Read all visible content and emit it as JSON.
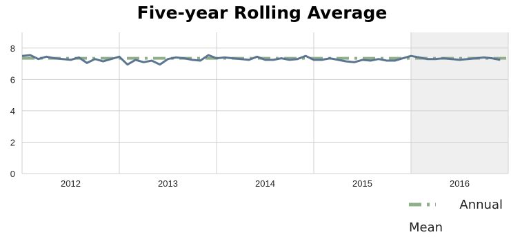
{
  "chart_data": {
    "type": "line",
    "title": "Five-year Rolling Average",
    "xlabel": "",
    "ylabel": "",
    "ylim": [
      0,
      9
    ],
    "yticks": [
      0,
      2,
      4,
      6,
      8
    ],
    "xlim": [
      0,
      60
    ],
    "year_labels": [
      "2012",
      "2013",
      "2014",
      "2015",
      "2016"
    ],
    "shaded_year": "2016",
    "grid": true,
    "legend_position": "bottom-right",
    "colors": {
      "series": "#5b7591",
      "mean": "#8fae8a",
      "shade": "#efefef",
      "grid": "#d0d0d0"
    },
    "series": [
      {
        "x": [
          0,
          1,
          2,
          3,
          4,
          5,
          6,
          7,
          8,
          9,
          10,
          11,
          12,
          13,
          14,
          15,
          16,
          17,
          18,
          19,
          20,
          21,
          22,
          23,
          24,
          25,
          26,
          27,
          28,
          29,
          30,
          31,
          32,
          33,
          34,
          35,
          36,
          37,
          38,
          39,
          40,
          41,
          42,
          43,
          44,
          45,
          46,
          47,
          48,
          49,
          50,
          51,
          52,
          53,
          54,
          55,
          56,
          57,
          58,
          59,
          60
        ],
        "values": [
          7.5,
          7.55,
          7.3,
          7.45,
          7.35,
          7.3,
          7.25,
          7.4,
          7.05,
          7.3,
          7.15,
          7.3,
          7.45,
          6.95,
          7.25,
          7.1,
          7.2,
          6.95,
          7.3,
          7.4,
          7.35,
          7.25,
          7.2,
          7.55,
          7.35,
          7.4,
          7.35,
          7.3,
          7.25,
          7.45,
          7.25,
          7.25,
          7.35,
          7.25,
          7.3,
          7.5,
          7.25,
          7.25,
          7.35,
          7.25,
          7.15,
          7.1,
          7.25,
          7.2,
          7.3,
          7.2,
          7.2,
          7.35,
          7.5,
          7.4,
          7.3,
          7.3,
          7.35,
          7.3,
          7.25,
          7.3,
          7.35,
          7.4,
          7.35,
          7.25,
          null
        ]
      },
      {
        "name": "Annual Mean",
        "x": [
          0,
          60
        ],
        "values": [
          7.35,
          7.35
        ]
      }
    ]
  }
}
